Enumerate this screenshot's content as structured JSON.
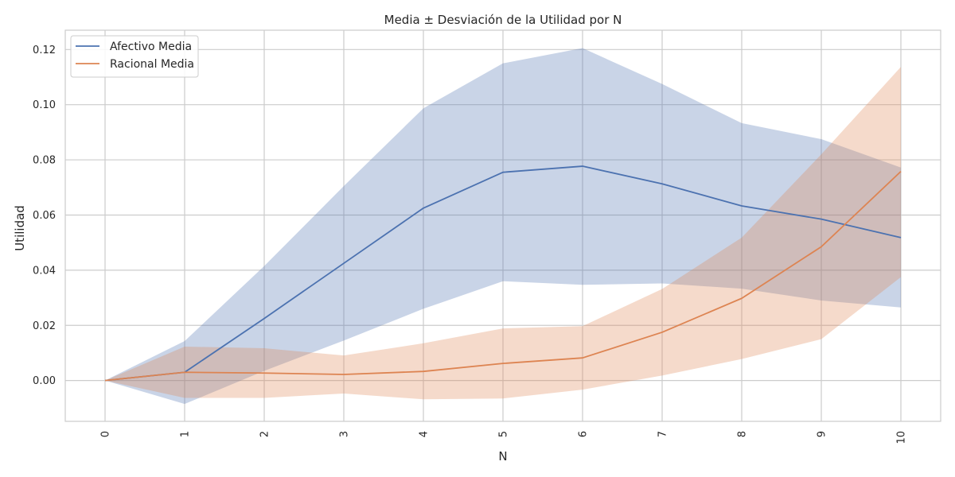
{
  "chart_data": {
    "type": "line",
    "title": "Media ± Desviación de la Utilidad por N",
    "xlabel": "N",
    "ylabel": "Utilidad",
    "x": [
      0,
      1,
      2,
      3,
      4,
      5,
      6,
      7,
      8,
      9,
      10
    ],
    "xlim": [
      -0.5,
      10.5
    ],
    "ylim": [
      -0.0148,
      0.127
    ],
    "yticks": [
      0.0,
      0.02,
      0.04,
      0.06,
      0.08,
      0.1,
      0.12
    ],
    "ytick_labels": [
      "0.00",
      "0.02",
      "0.04",
      "0.06",
      "0.08",
      "0.10",
      "0.12"
    ],
    "xtick_labels": [
      "0",
      "1",
      "2",
      "3",
      "4",
      "5",
      "6",
      "7",
      "8",
      "9",
      "10"
    ],
    "grid": true,
    "legend_position": "upper-left",
    "series": [
      {
        "name": "Afectivo Media",
        "color": "#4c72b0",
        "band_color": "#4c72b0",
        "mean": [
          0.0,
          0.003,
          0.0225,
          0.0425,
          0.0625,
          0.0755,
          0.0777,
          0.0713,
          0.0633,
          0.0585,
          0.0518
        ],
        "lower": [
          0.0,
          -0.0085,
          0.0035,
          0.0145,
          0.026,
          0.036,
          0.0347,
          0.0352,
          0.0333,
          0.029,
          0.0265
        ],
        "upper": [
          0.0,
          0.0143,
          0.0415,
          0.0705,
          0.0987,
          0.115,
          0.1205,
          0.1075,
          0.0933,
          0.0875,
          0.0772
        ]
      },
      {
        "name": "Racional Media",
        "color": "#dd8452",
        "band_color": "#dd8452",
        "mean": [
          0.0,
          0.003,
          0.0027,
          0.0022,
          0.0033,
          0.0062,
          0.0082,
          0.0175,
          0.0298,
          0.0485,
          0.0758
        ],
        "lower": [
          0.0,
          -0.0063,
          -0.0063,
          -0.0047,
          -0.0068,
          -0.0065,
          -0.0033,
          0.0018,
          0.0078,
          0.015,
          0.0375
        ],
        "upper": [
          0.0,
          0.0123,
          0.0117,
          0.0091,
          0.0135,
          0.0189,
          0.0197,
          0.0332,
          0.0518,
          0.082,
          0.1137
        ]
      }
    ]
  }
}
